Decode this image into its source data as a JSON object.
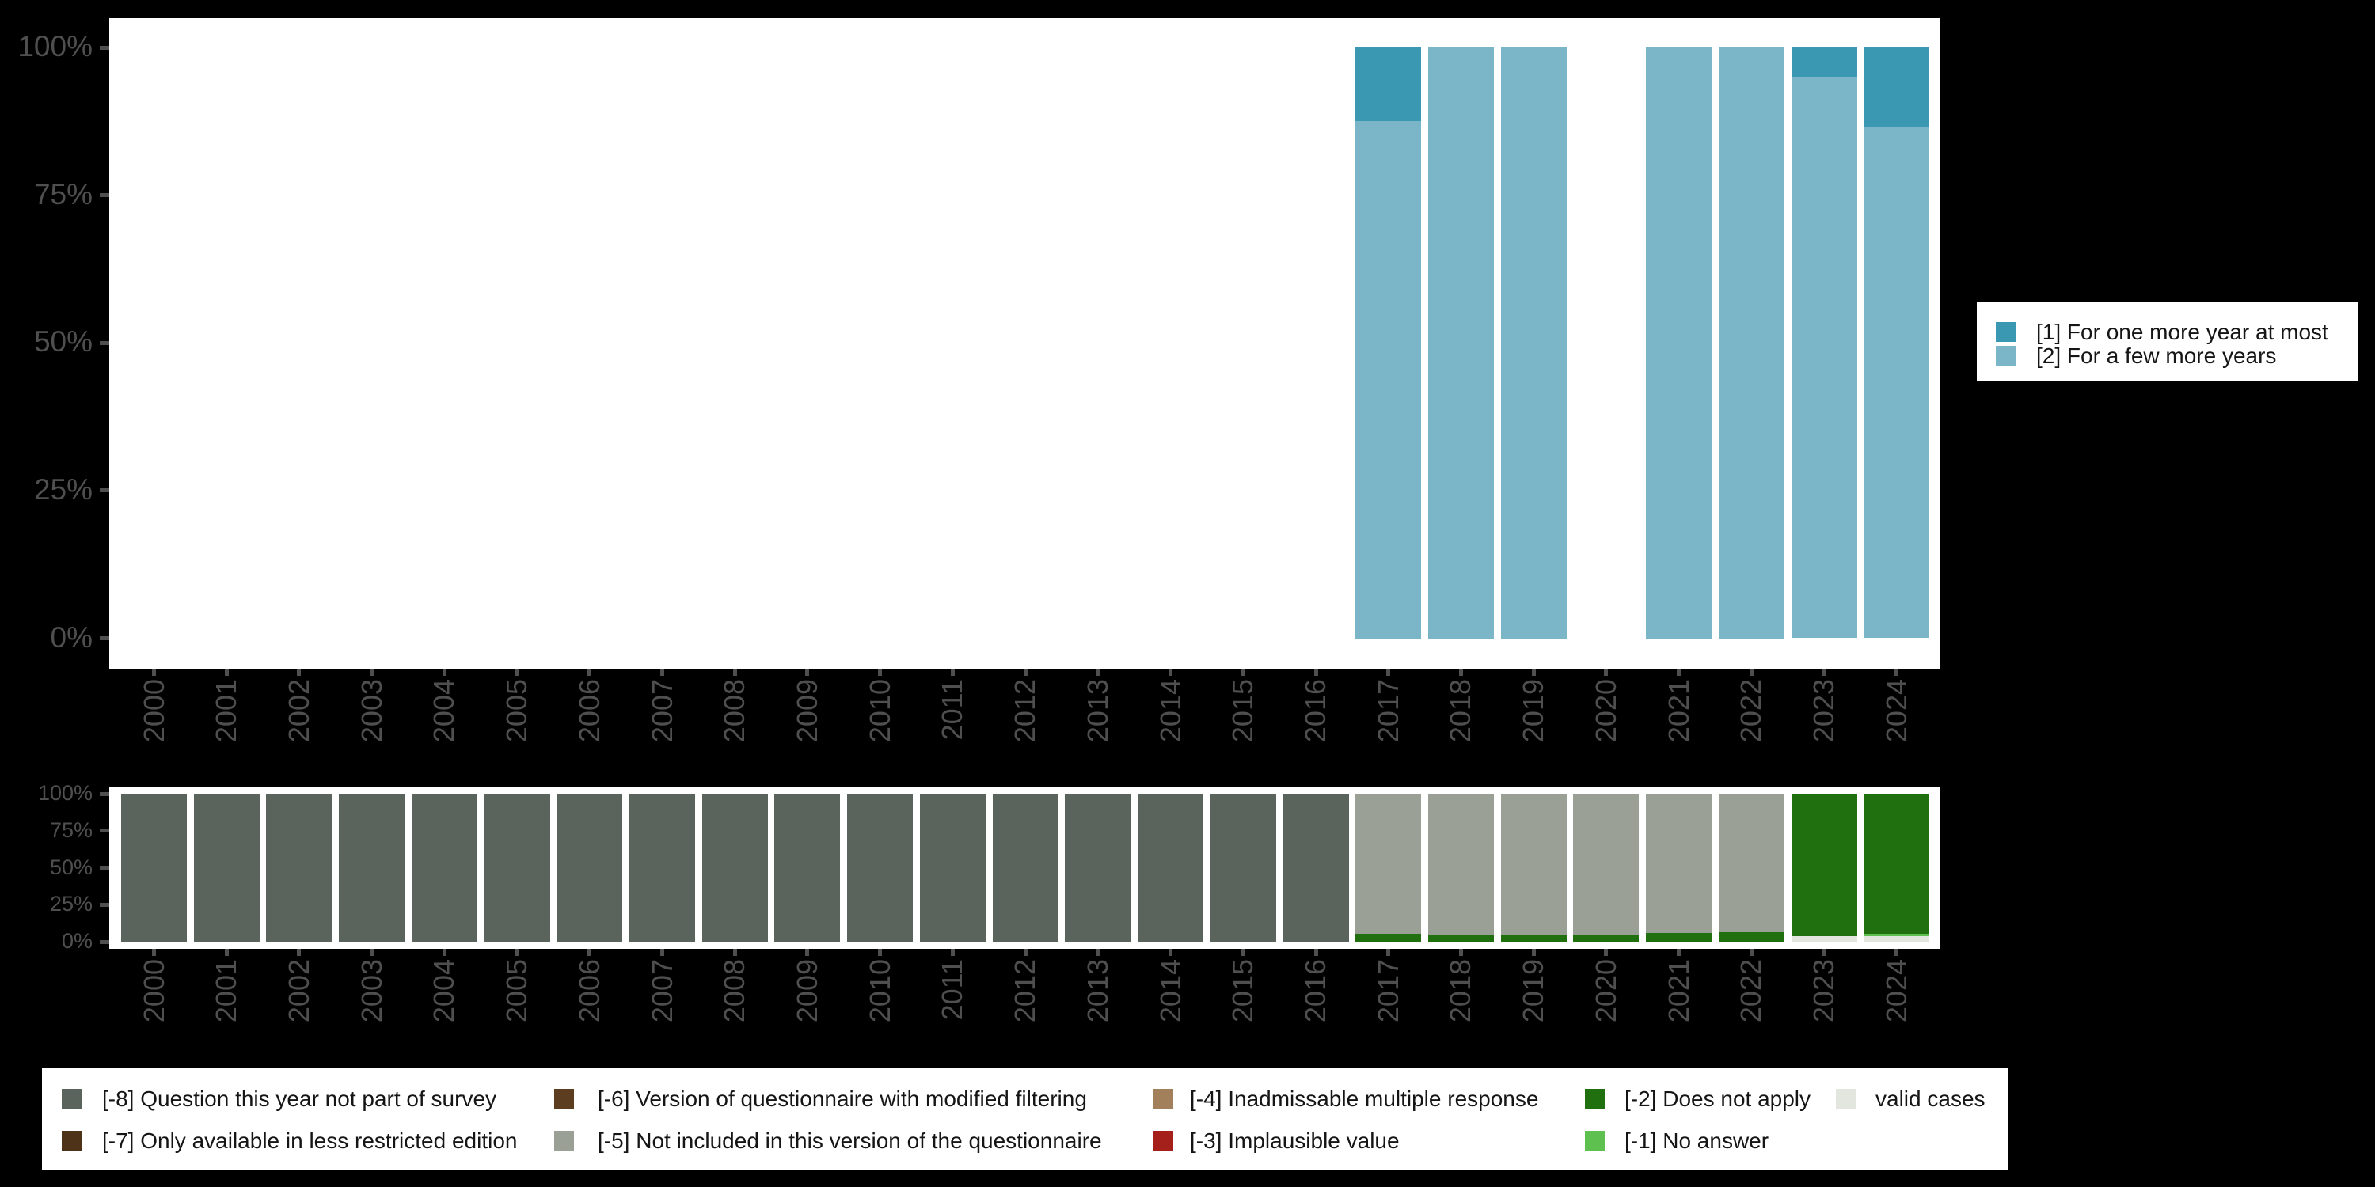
{
  "page": {
    "background": "#000000",
    "panel_background": "#ffffff",
    "axis_text_color": "#4f4f4f"
  },
  "chart_data": [
    {
      "id": "answers",
      "type": "bar",
      "subtype": "stacked_percent",
      "categories": [
        "2000",
        "2001",
        "2002",
        "2003",
        "2004",
        "2005",
        "2006",
        "2007",
        "2008",
        "2009",
        "2010",
        "2011",
        "2012",
        "2013",
        "2014",
        "2015",
        "2016",
        "2017",
        "2018",
        "2019",
        "2020",
        "2021",
        "2022",
        "2023",
        "2024"
      ],
      "y_tick_labels": [
        "100%",
        "75%",
        "50%",
        "25%",
        "0%"
      ],
      "y_tick_values": [
        100,
        75,
        50,
        25,
        0
      ],
      "ylim": [
        0,
        100
      ],
      "grid": false,
      "legend_position": "right",
      "series": [
        {
          "name": "[1] For one more year at most",
          "color": "#3a98b2",
          "values": [
            0,
            0,
            0,
            0,
            0,
            0,
            0,
            0,
            0,
            0,
            0,
            0,
            0,
            0,
            0,
            0,
            0,
            12.5,
            0,
            0,
            0,
            0,
            0,
            5,
            13.5
          ]
        },
        {
          "name": "[2] For a few more years",
          "color": "#7ab6c8",
          "values": [
            0,
            0,
            0,
            0,
            0,
            0,
            0,
            0,
            0,
            0,
            0,
            0,
            0,
            0,
            0,
            0,
            0,
            87.5,
            100,
            100,
            0,
            100,
            100,
            95,
            86.5
          ]
        }
      ]
    },
    {
      "id": "missings",
      "type": "bar",
      "subtype": "stacked_percent",
      "categories": [
        "2000",
        "2001",
        "2002",
        "2003",
        "2004",
        "2005",
        "2006",
        "2007",
        "2008",
        "2009",
        "2010",
        "2011",
        "2012",
        "2013",
        "2014",
        "2015",
        "2016",
        "2017",
        "2018",
        "2019",
        "2020",
        "2021",
        "2022",
        "2023",
        "2024"
      ],
      "y_tick_labels": [
        "100%",
        "75%",
        "50%",
        "25%",
        "0%"
      ],
      "y_tick_values": [
        100,
        75,
        50,
        25,
        0
      ],
      "ylim": [
        0,
        100
      ],
      "grid": false,
      "legend_position": "bottom",
      "series": [
        {
          "name": "[-8] Question this year not part of survey",
          "color": "#5a645c",
          "values": [
            100,
            100,
            100,
            100,
            100,
            100,
            100,
            100,
            100,
            100,
            100,
            100,
            100,
            100,
            100,
            100,
            100,
            0,
            0,
            0,
            0,
            0,
            0,
            0,
            0
          ]
        },
        {
          "name": "[-5] Not included in this version of the questionnaire",
          "color": "#9aa096",
          "values": [
            0,
            0,
            0,
            0,
            0,
            0,
            0,
            0,
            0,
            0,
            0,
            0,
            0,
            0,
            0,
            0,
            0,
            94.7,
            95.2,
            95.1,
            95.7,
            94.3,
            93.6,
            0,
            0
          ]
        },
        {
          "name": "[-2] Does not apply",
          "color": "#21700f",
          "values": [
            0,
            0,
            0,
            0,
            0,
            0,
            0,
            0,
            0,
            0,
            0,
            0,
            0,
            0,
            0,
            0,
            0,
            5.3,
            4.8,
            4.9,
            4.3,
            5.7,
            6.4,
            96.5,
            94.8
          ]
        },
        {
          "name": "[-1] No answer",
          "color": "#5ec04f",
          "values": [
            0,
            0,
            0,
            0,
            0,
            0,
            0,
            0,
            0,
            0,
            0,
            0,
            0,
            0,
            0,
            0,
            0,
            0,
            0,
            0,
            0,
            0,
            0,
            0,
            1.4
          ]
        },
        {
          "name": "valid cases",
          "color": "#e2e6de",
          "values": [
            0,
            0,
            0,
            0,
            0,
            0,
            0,
            0,
            0,
            0,
            0,
            0,
            0,
            0,
            0,
            0,
            0,
            0,
            0,
            0,
            0,
            0,
            0,
            3.5,
            3.8
          ]
        }
      ]
    }
  ],
  "legends": {
    "main": {
      "items": [
        {
          "label": "[1] For one more year at most",
          "color": "#3a98b2"
        },
        {
          "label": "[2] For a few more years",
          "color": "#7ab6c8"
        }
      ]
    },
    "missing": {
      "items": [
        {
          "label": "[-8] Question this year not part of survey",
          "color": "#5a645c"
        },
        {
          "label": "[-7] Only available in less restricted edition",
          "color": "#4f3318"
        },
        {
          "label": "[-6] Version of questionnaire with modified filtering",
          "color": "#5d3d20"
        },
        {
          "label": "[-5] Not included in this version of the questionnaire",
          "color": "#9aa096"
        },
        {
          "label": "[-4] Inadmissable multiple response",
          "color": "#a1805b"
        },
        {
          "label": "[-3] Implausible value",
          "color": "#a51f1b"
        },
        {
          "label": "[-2] Does not apply",
          "color": "#21700f"
        },
        {
          "label": "[-1] No answer",
          "color": "#5ec04f"
        },
        {
          "label": "valid cases",
          "color": "#e2e6de"
        }
      ]
    }
  }
}
